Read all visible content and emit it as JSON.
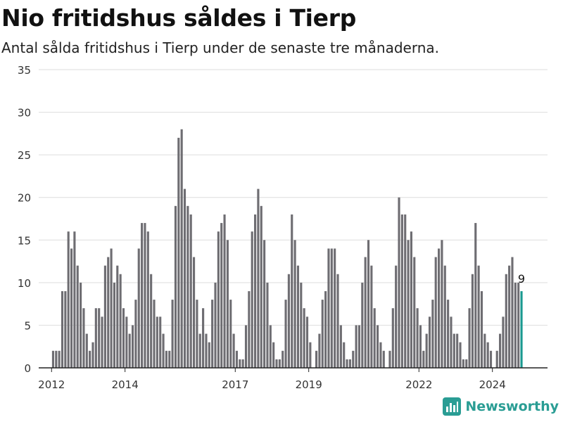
{
  "title": "Nio fritidshus såldes i Tierp",
  "subtitle": "Antal sålda fritidshus i Tierp under de senaste tre månaderna.",
  "brand": {
    "name": "Newsworthy",
    "color": "#2a9d94"
  },
  "colors": {
    "bar": "#6e6d72",
    "highlight": "#1a9990",
    "grid": "#dddddd",
    "axis": "#222222"
  },
  "chart_data": {
    "type": "bar",
    "title": "Nio fritidshus såldes i Tierp",
    "xlabel": "",
    "ylabel": "",
    "ylim": [
      0,
      35
    ],
    "yticks": [
      0,
      5,
      10,
      15,
      20,
      25,
      30,
      35
    ],
    "xlim": [
      2011.65,
      2025.5
    ],
    "xticks": [
      {
        "x": 2012,
        "label": "2012"
      },
      {
        "x": 2014,
        "label": "2014"
      },
      {
        "x": 2017,
        "label": "2017"
      },
      {
        "x": 2019,
        "label": "2019"
      },
      {
        "x": 2022,
        "label": "2022"
      },
      {
        "x": 2024,
        "label": "2024"
      }
    ],
    "start_year": 2012,
    "values": [
      2,
      2,
      2,
      9,
      9,
      16,
      14,
      16,
      12,
      10,
      7,
      4,
      2,
      3,
      7,
      7,
      6,
      12,
      13,
      14,
      10,
      12,
      11,
      7,
      6,
      4,
      5,
      8,
      14,
      17,
      17,
      16,
      11,
      8,
      6,
      6,
      4,
      2,
      2,
      8,
      19,
      27,
      28,
      21,
      19,
      18,
      13,
      8,
      4,
      7,
      4,
      3,
      8,
      10,
      16,
      17,
      18,
      15,
      8,
      4,
      2,
      1,
      1,
      5,
      9,
      16,
      18,
      21,
      19,
      15,
      10,
      5,
      3,
      1,
      1,
      2,
      8,
      11,
      18,
      15,
      12,
      10,
      7,
      6,
      3,
      0,
      2,
      4,
      8,
      9,
      14,
      14,
      14,
      11,
      5,
      3,
      1,
      1,
      2,
      5,
      5,
      10,
      13,
      15,
      12,
      7,
      5,
      3,
      2,
      0,
      2,
      7,
      12,
      20,
      18,
      18,
      15,
      16,
      13,
      7,
      5,
      2,
      4,
      6,
      8,
      13,
      14,
      15,
      12,
      8,
      6,
      4,
      4,
      3,
      1,
      1,
      7,
      11,
      17,
      12,
      9,
      4,
      3,
      2,
      0,
      2,
      4,
      6,
      11,
      12,
      13,
      10,
      10,
      9
    ],
    "annotation": {
      "text": "9",
      "index": 153
    }
  }
}
